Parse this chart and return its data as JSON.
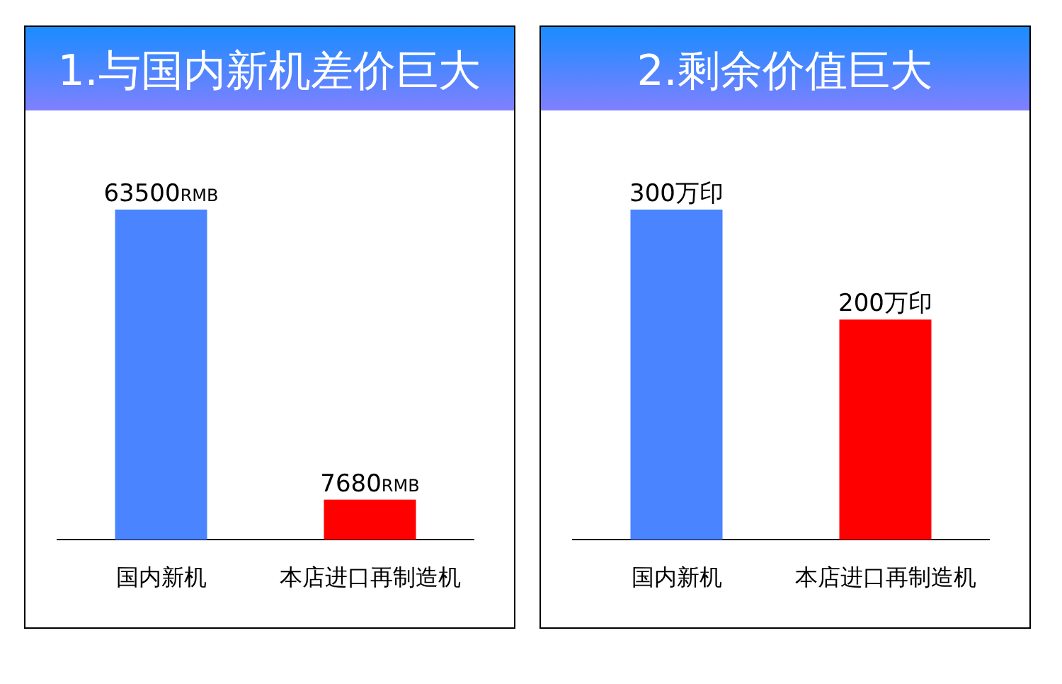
{
  "chart_data": [
    {
      "type": "bar",
      "title": "1.与国内新机差价巨大",
      "categories": [
        "国内新机",
        "本店进口再制造机"
      ],
      "values": [
        63500,
        7680
      ],
      "colors": [
        "#4a84ff",
        "#ff0000"
      ],
      "value_labels": [
        "63500RMB",
        "7680RMB"
      ]
    },
    {
      "type": "bar",
      "title": "2.剩余价值巨大",
      "categories": [
        "国内新机",
        "本店进口再制造机"
      ],
      "values": [
        300,
        200
      ],
      "colors": [
        "#4a84ff",
        "#ff0000"
      ],
      "value_labels": [
        "300万印",
        "200万印"
      ]
    }
  ]
}
